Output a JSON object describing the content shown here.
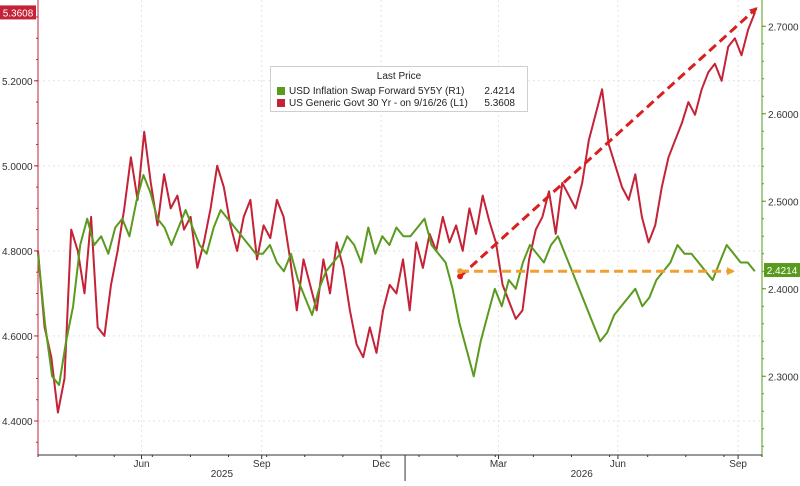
{
  "chart_data": {
    "type": "line",
    "legend": {
      "title": "Last Price",
      "placement": "top-center",
      "entries": [
        {
          "name": "USD Inflation Swap Forward 5Y5Y  (R1)",
          "value": "2.4214",
          "color": "#5a9a1e"
        },
        {
          "name": "US Generic Govt 30 Yr -  on 9/16/26  (L1)",
          "value": "5.3608",
          "color": "#c42237"
        }
      ]
    },
    "x_axis": {
      "month_labels": [
        "Jun",
        "Sep",
        "Dec",
        "Mar",
        "Jun",
        "Sep"
      ],
      "year_labels": [
        "2025",
        "2026"
      ],
      "range": [
        "2025-03",
        "2026-09"
      ]
    },
    "y_left": {
      "ticks": [
        "4.4000",
        "4.6000",
        "4.8000",
        "5.0000",
        "5.2000"
      ],
      "range": [
        4.32,
        5.39
      ],
      "last_value": "5.3608"
    },
    "y_right": {
      "ticks": [
        "2.3000",
        "2.4000",
        "2.5000",
        "2.6000",
        "2.7000"
      ],
      "range": [
        2.21,
        2.73
      ],
      "last_value": "2.4214"
    },
    "series": [
      {
        "name": "US Generic Govt 30 Yr -  on 9/16/26  (L1)",
        "axis": "left",
        "color": "#c42237",
        "values": [
          4.8,
          4.62,
          4.55,
          4.42,
          4.5,
          4.85,
          4.8,
          4.7,
          4.88,
          4.62,
          4.6,
          4.72,
          4.8,
          4.9,
          5.02,
          4.92,
          5.08,
          4.96,
          4.86,
          4.98,
          4.9,
          4.93,
          4.85,
          4.88,
          4.76,
          4.82,
          4.9,
          5.0,
          4.95,
          4.86,
          4.8,
          4.88,
          4.92,
          4.78,
          4.86,
          4.83,
          4.92,
          4.88,
          4.78,
          4.66,
          4.78,
          4.72,
          4.66,
          4.78,
          4.7,
          4.82,
          4.76,
          4.66,
          4.58,
          4.55,
          4.62,
          4.56,
          4.66,
          4.72,
          4.7,
          4.78,
          4.66,
          4.82,
          4.76,
          4.84,
          4.8,
          4.88,
          4.82,
          4.86,
          4.8,
          4.9,
          4.84,
          4.93,
          4.87,
          4.82,
          4.72,
          4.68,
          4.64,
          4.66,
          4.78,
          4.85,
          4.88,
          4.94,
          4.84,
          4.96,
          4.93,
          4.9,
          4.96,
          5.06,
          5.12,
          5.18,
          5.05,
          5.0,
          4.95,
          4.92,
          4.98,
          4.88,
          4.82,
          4.86,
          4.95,
          5.02,
          5.06,
          5.1,
          5.15,
          5.12,
          5.18,
          5.22,
          5.24,
          5.2,
          5.28,
          5.3,
          5.26,
          5.32,
          5.36
        ]
      },
      {
        "name": "USD Inflation Swap Forward 5Y5Y  (R1)",
        "axis": "right",
        "color": "#5a9a1e",
        "values": [
          2.44,
          2.36,
          2.3,
          2.29,
          2.34,
          2.38,
          2.45,
          2.48,
          2.45,
          2.46,
          2.44,
          2.47,
          2.48,
          2.46,
          2.5,
          2.53,
          2.51,
          2.48,
          2.47,
          2.45,
          2.47,
          2.49,
          2.47,
          2.45,
          2.44,
          2.47,
          2.49,
          2.48,
          2.47,
          2.46,
          2.45,
          2.44,
          2.44,
          2.45,
          2.43,
          2.42,
          2.44,
          2.41,
          2.39,
          2.37,
          2.4,
          2.42,
          2.43,
          2.44,
          2.46,
          2.45,
          2.43,
          2.47,
          2.44,
          2.46,
          2.45,
          2.47,
          2.46,
          2.46,
          2.47,
          2.48,
          2.45,
          2.44,
          2.43,
          2.4,
          2.36,
          2.33,
          2.3,
          2.34,
          2.37,
          2.4,
          2.38,
          2.41,
          2.4,
          2.43,
          2.45,
          2.44,
          2.43,
          2.45,
          2.46,
          2.44,
          2.42,
          2.4,
          2.38,
          2.36,
          2.34,
          2.35,
          2.37,
          2.38,
          2.39,
          2.4,
          2.38,
          2.39,
          2.41,
          2.42,
          2.43,
          2.45,
          2.44,
          2.44,
          2.43,
          2.42,
          2.41,
          2.43,
          2.45,
          2.44,
          2.43,
          2.43,
          2.42
        ]
      }
    ],
    "annotations": [
      {
        "type": "arrow",
        "label": "",
        "color": "#d9201f",
        "from": {
          "t": 0.583,
          "value": 4.74,
          "axis": "left"
        },
        "to": {
          "t": 0.992,
          "value": 5.37,
          "axis": "left"
        }
      },
      {
        "type": "arrow",
        "label": "",
        "color": "#f0a030",
        "from": {
          "t": 0.583,
          "value": 2.42,
          "axis": "right"
        },
        "to": {
          "t": 0.96,
          "value": 2.42,
          "axis": "right"
        }
      }
    ],
    "grid": true
  }
}
